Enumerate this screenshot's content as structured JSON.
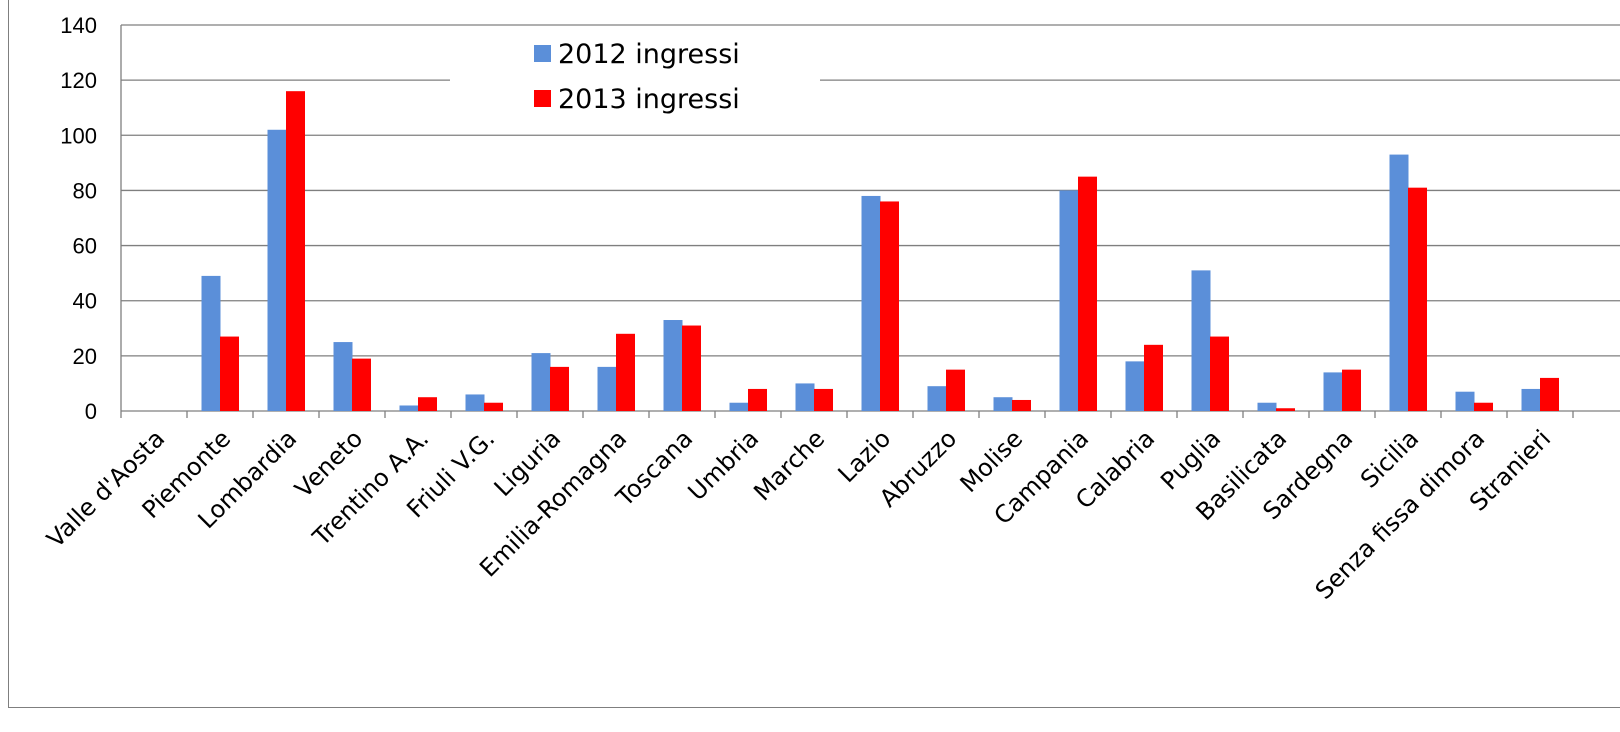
{
  "chart_data": {
    "type": "bar",
    "title": "",
    "xlabel": "",
    "ylabel": "",
    "ylim": [
      0,
      140
    ],
    "yticks": [
      0,
      20,
      40,
      60,
      80,
      100,
      120,
      140
    ],
    "grid": true,
    "legend_position": "top-center",
    "categories": [
      "Valle d'Aosta",
      "Piemonte",
      "Lombardia",
      "Veneto",
      "Trentino A.A.",
      "Friuli V.G.",
      "Liguria",
      "Emilia-Romagna",
      "Toscana",
      "Umbria",
      "Marche",
      "Lazio",
      "Abruzzo",
      "Molise",
      "Campania",
      "Calabria",
      "Puglia",
      "Basilicata",
      "Sardegna",
      "Sicilia",
      "Senza fissa dimora",
      "Stranieri"
    ],
    "series": [
      {
        "name": "2012 ingressi",
        "color": "#5b8fd9",
        "values": [
          0,
          49,
          102,
          25,
          2,
          6,
          21,
          16,
          33,
          3,
          10,
          78,
          9,
          5,
          80,
          18,
          51,
          3,
          14,
          93,
          7,
          8
        ]
      },
      {
        "name": "2013 ingressi",
        "color": "#ff0000",
        "values": [
          0,
          27,
          116,
          19,
          5,
          3,
          16,
          28,
          31,
          8,
          8,
          76,
          15,
          4,
          85,
          24,
          27,
          1,
          15,
          81,
          3,
          12
        ]
      }
    ]
  }
}
